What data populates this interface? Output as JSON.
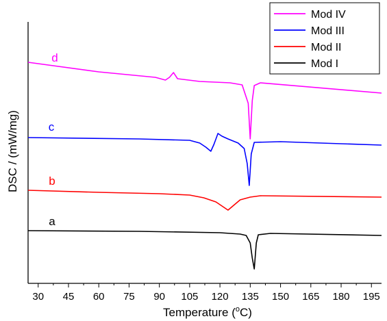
{
  "chart_data": {
    "type": "line",
    "title": "",
    "xlabel": "Temperature (",
    "xlabel_sup": "o",
    "xlabel_suffix": "C)",
    "ylabel": "DSC / (mW/mg)",
    "xlim": [
      25,
      200
    ],
    "xticks": [
      30,
      45,
      60,
      75,
      90,
      105,
      120,
      135,
      150,
      165,
      180,
      195
    ],
    "grid": false,
    "y_ticks_shown": false,
    "legend_position": "top-right",
    "legend_order": [
      "Mod IV",
      "Mod III",
      "Mod II",
      "Mod I"
    ],
    "series": [
      {
        "name": "Mod IV",
        "label": "d",
        "color": "#ff00ff",
        "points": [
          [
            25,
            0
          ],
          [
            60,
            -14
          ],
          [
            88,
            -22
          ],
          [
            93,
            -26
          ],
          [
            95,
            -22
          ],
          [
            97,
            -15
          ],
          [
            99,
            -24
          ],
          [
            110,
            -28
          ],
          [
            125,
            -30
          ],
          [
            131,
            -33
          ],
          [
            134,
            -60
          ],
          [
            135,
            -112
          ],
          [
            136,
            -56
          ],
          [
            137,
            -34
          ],
          [
            140,
            -30
          ],
          [
            200,
            -45
          ]
        ]
      },
      {
        "name": "Mod III",
        "label": "c",
        "color": "#0000ff",
        "points": [
          [
            25,
            0
          ],
          [
            80,
            -2
          ],
          [
            105,
            -4
          ],
          [
            110,
            -8
          ],
          [
            113,
            -14
          ],
          [
            115.5,
            -20
          ],
          [
            117,
            -10
          ],
          [
            119,
            6
          ],
          [
            121,
            2
          ],
          [
            124,
            -2
          ],
          [
            129,
            -8
          ],
          [
            132,
            -16
          ],
          [
            133.5,
            -38
          ],
          [
            134.5,
            -70
          ],
          [
            135.5,
            -24
          ],
          [
            137,
            -7
          ],
          [
            150,
            -6
          ],
          [
            200,
            -11
          ]
        ]
      },
      {
        "name": "Mod II",
        "label": "b",
        "color": "#ff0000",
        "points": [
          [
            25,
            0
          ],
          [
            60,
            -3
          ],
          [
            90,
            -5
          ],
          [
            105,
            -7
          ],
          [
            112,
            -11
          ],
          [
            118,
            -17
          ],
          [
            122,
            -25
          ],
          [
            124,
            -29
          ],
          [
            126,
            -24
          ],
          [
            130,
            -14
          ],
          [
            135,
            -10
          ],
          [
            140,
            -8
          ],
          [
            200,
            -10
          ]
        ]
      },
      {
        "name": "Mod I",
        "label": "a",
        "color": "#000000",
        "points": [
          [
            25,
            0
          ],
          [
            80,
            -1
          ],
          [
            120,
            -3
          ],
          [
            130,
            -5
          ],
          [
            133,
            -7
          ],
          [
            135,
            -18
          ],
          [
            136,
            -40
          ],
          [
            137,
            -56
          ],
          [
            138,
            -18
          ],
          [
            139,
            -6
          ],
          [
            145,
            -4
          ],
          [
            200,
            -7
          ]
        ]
      }
    ]
  }
}
